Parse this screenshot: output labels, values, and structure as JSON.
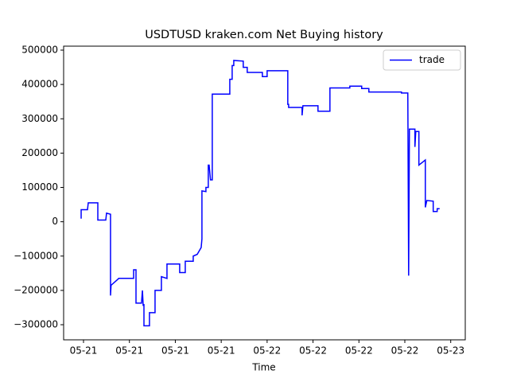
{
  "chart_data": {
    "type": "line",
    "title": "USDTUSD kraken.com Net Buying history",
    "x_label": "Time",
    "legend": "upper right",
    "xlim": [
      -2.6,
      49.9
    ],
    "ylim": [
      -344000,
      511600
    ],
    "xticks": [
      {
        "value": 0,
        "label": "05-21"
      },
      {
        "value": 6,
        "label": "05-21"
      },
      {
        "value": 12,
        "label": "05-21"
      },
      {
        "value": 18,
        "label": "05-21"
      },
      {
        "value": 24,
        "label": "05-22"
      },
      {
        "value": 30,
        "label": "05-22"
      },
      {
        "value": 36,
        "label": "05-22"
      },
      {
        "value": 42,
        "label": "05-22"
      },
      {
        "value": 48,
        "label": "05-23"
      }
    ],
    "yticks": [
      {
        "value": -300000,
        "label": "−300000"
      },
      {
        "value": -200000,
        "label": "−200000"
      },
      {
        "value": -100000,
        "label": "−100000"
      },
      0,
      100000,
      200000,
      300000,
      400000,
      500000
    ],
    "series": [
      {
        "name": "trade",
        "color": "#0000ff",
        "x": [
          -0.31,
          -0.31,
          0.52,
          0.62,
          1.87,
          1.87,
          2.91,
          3.01,
          3.53,
          3.53,
          3.6,
          4.47,
          4.6,
          6.55,
          6.55,
          6.86,
          6.86,
          7.58,
          7.7,
          7.8,
          7.9,
          7.9,
          8.62,
          8.62,
          9.35,
          9.35,
          10.18,
          10.18,
          10.91,
          10.91,
          12.57,
          12.57,
          13.3,
          13.3,
          14.34,
          14.34,
          14.86,
          15.38,
          15.48,
          15.48,
          16.0,
          16.0,
          16.31,
          16.31,
          16.42,
          16.6,
          16.83,
          16.83,
          19.12,
          19.12,
          19.43,
          19.43,
          19.64,
          19.64,
          20.88,
          20.88,
          21.4,
          21.4,
          23.38,
          23.38,
          24.0,
          24.0,
          26.7,
          26.7,
          26.81,
          26.81,
          28.57,
          28.57,
          28.68,
          30.65,
          30.65,
          32.21,
          32.21,
          34.81,
          34.81,
          36.36,
          36.36,
          37.3,
          37.3,
          41.56,
          41.56,
          42.39,
          42.5,
          42.6,
          43.32,
          43.32,
          43.43,
          43.84,
          43.84,
          44.68,
          44.68,
          44.88,
          45.71,
          45.71,
          46.23,
          46.23,
          46.55
        ],
        "values": [
          9000,
          35000,
          35000,
          55000,
          55000,
          5000,
          5000,
          25000,
          22000,
          -215000,
          -185000,
          -168000,
          -165000,
          -165000,
          -140000,
          -140000,
          -237000,
          -237000,
          -200000,
          -245000,
          -240000,
          -303000,
          -303000,
          -265000,
          -265000,
          -200000,
          -200000,
          -160000,
          -165000,
          -123000,
          -123000,
          -148000,
          -148000,
          -115000,
          -115000,
          -100000,
          -95000,
          -75000,
          -50000,
          90000,
          88000,
          100000,
          100000,
          165000,
          165000,
          122000,
          122000,
          372000,
          372000,
          415000,
          415000,
          455000,
          455000,
          470000,
          468000,
          450000,
          450000,
          435000,
          435000,
          423000,
          423000,
          440000,
          440000,
          342000,
          342000,
          333000,
          333000,
          310000,
          338000,
          338000,
          322000,
          322000,
          390000,
          390000,
          395000,
          395000,
          388000,
          388000,
          378000,
          378000,
          375000,
          375000,
          -157000,
          270000,
          270000,
          218000,
          263000,
          263000,
          165000,
          180000,
          42000,
          62000,
          60000,
          30000,
          30000,
          38000,
          38000
        ]
      }
    ]
  }
}
